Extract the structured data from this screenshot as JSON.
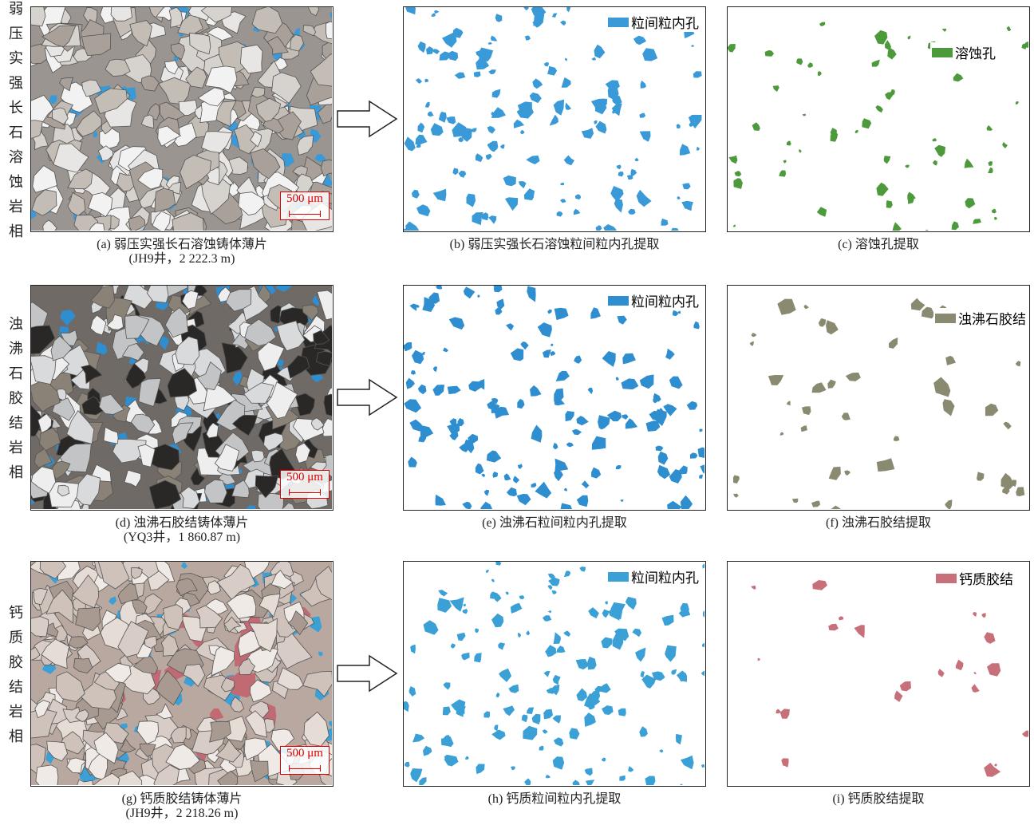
{
  "rows": [
    {
      "facies": "弱压实强长石溶蚀岩相",
      "panels": [
        {
          "caption": "(a) 弱压实强长石溶蚀铸体薄片",
          "caption2": "(JH9井，2 222.3 m)",
          "scale": "500 μm"
        },
        {
          "caption": "(b) 弱压实强长石溶蚀粒间粒内孔提取",
          "legend": "粒间粒内孔"
        },
        {
          "caption": "(c) 溶蚀孔提取",
          "legend": "溶蚀孔"
        }
      ]
    },
    {
      "facies": "浊沸石胶结岩相",
      "panels": [
        {
          "caption": "(d) 浊沸石胶结铸体薄片",
          "caption2": "(YQ3井，1 860.87 m)",
          "scale": "500 μm"
        },
        {
          "caption": "(e) 浊沸石粒间粒内孔提取",
          "legend": "粒间粒内孔"
        },
        {
          "caption": "(f) 浊沸石胶结提取",
          "legend": "浊沸石胶结"
        }
      ]
    },
    {
      "facies": "钙质胶结岩相",
      "panels": [
        {
          "caption": "(g) 钙质胶结铸体薄片",
          "caption2": "(JH9井，2 218.26 m)",
          "scale": "500 μm"
        },
        {
          "caption": "(h) 钙质粒间粒内孔提取",
          "legend": "粒间粒内孔"
        },
        {
          "caption": "(i) 钙质胶结提取",
          "legend": "钙质胶结"
        }
      ]
    }
  ]
}
